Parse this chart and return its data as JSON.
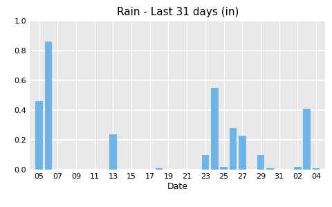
{
  "title": "Rain - Last 31 days (in)",
  "xlabel": "Date",
  "bar_color": "#6EB4E8",
  "plot_bg_color": "#E8E8E8",
  "fig_bg_color": "#FFFFFF",
  "ylim": [
    0,
    1.0
  ],
  "yticks": [
    0.0,
    0.2,
    0.4,
    0.6,
    0.8,
    1.0
  ],
  "xtick_labels": [
    "05",
    "07",
    "09",
    "11",
    "13",
    "15",
    "17",
    "19",
    "21",
    "23",
    "25",
    "27",
    "29",
    "31",
    "02",
    "04"
  ],
  "xtick_positions": [
    1,
    3,
    5,
    7,
    9,
    11,
    13,
    15,
    17,
    19,
    21,
    23,
    25,
    27,
    29,
    31
  ],
  "dates_num": [
    1,
    2,
    3,
    4,
    5,
    6,
    7,
    8,
    9,
    10,
    11,
    12,
    13,
    14,
    15,
    16,
    17,
    18,
    19,
    20,
    21,
    22,
    23,
    24,
    25,
    26,
    27,
    28,
    29,
    30,
    31
  ],
  "values": [
    0.46,
    0.86,
    0.0,
    0.0,
    0.0,
    0.0,
    0.0,
    0.0,
    0.24,
    0.0,
    0.0,
    0.0,
    0.0,
    0.01,
    0.0,
    0.0,
    0.0,
    0.0,
    0.1,
    0.55,
    0.02,
    0.28,
    0.23,
    0.0,
    0.1,
    0.01,
    0.0,
    0.0,
    0.02,
    0.41,
    0.01
  ]
}
